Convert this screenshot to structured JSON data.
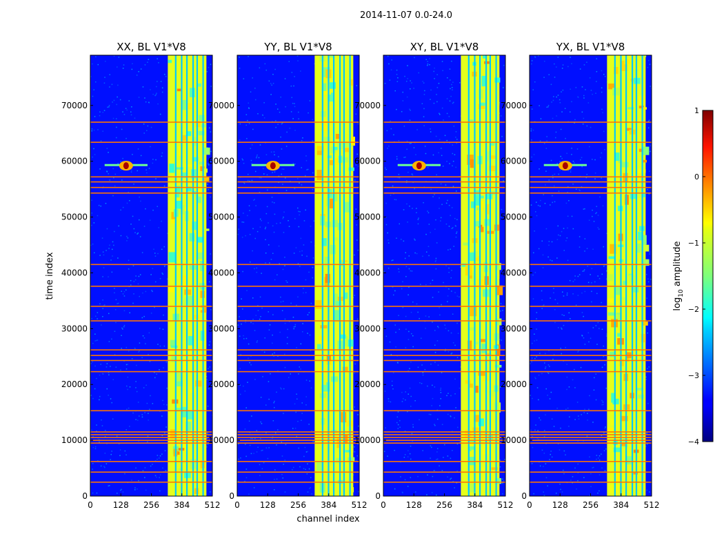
{
  "chart_data": {
    "type": "heatmap",
    "title": "2014-11-07 0.0-24.0",
    "xlabel": "channel index",
    "ylabel": "time index",
    "xlim": [
      0,
      512
    ],
    "ylim": [
      0,
      79000
    ],
    "x_ticks": [
      0,
      128,
      256,
      384,
      512
    ],
    "y_ticks": [
      0,
      10000,
      20000,
      30000,
      40000,
      50000,
      60000,
      70000
    ],
    "colorbar": {
      "label": "log10 amplitude",
      "label_main": "log",
      "label_sub": "10",
      "label_rest": " amplitude",
      "range": [
        -4,
        1
      ],
      "ticks": [
        1,
        0,
        -1,
        -2,
        -3,
        -4
      ],
      "tick_labels": [
        "1",
        "0",
        "−1",
        "−2",
        "−3",
        "−4"
      ],
      "colormap": "jet"
    },
    "background_level": -3.3,
    "bright_channel_range": [
      325,
      487
    ],
    "bright_channel_level": -1.0,
    "channel_gaps": [
      355,
      380,
      402,
      428,
      445,
      470
    ],
    "feature": {
      "channel": 150,
      "time": 59200,
      "peak_level": 0.8
    },
    "flagged_rows_time": [
      2500,
      4300,
      6200,
      9500,
      10000,
      10500,
      11000,
      11500,
      15300,
      22300,
      24300,
      25200,
      26200,
      31400,
      34000,
      37600,
      41500,
      54300,
      55300,
      56300,
      57200,
      63400,
      67000
    ],
    "panels": [
      {
        "title": "XX, BL V1*V8",
        "name": "panel-xx"
      },
      {
        "title": "YY, BL V1*V8",
        "name": "panel-yy"
      },
      {
        "title": "XY, BL V1*V8",
        "name": "panel-xy"
      },
      {
        "title": "YX, BL V1*V8",
        "name": "panel-yx"
      }
    ]
  }
}
